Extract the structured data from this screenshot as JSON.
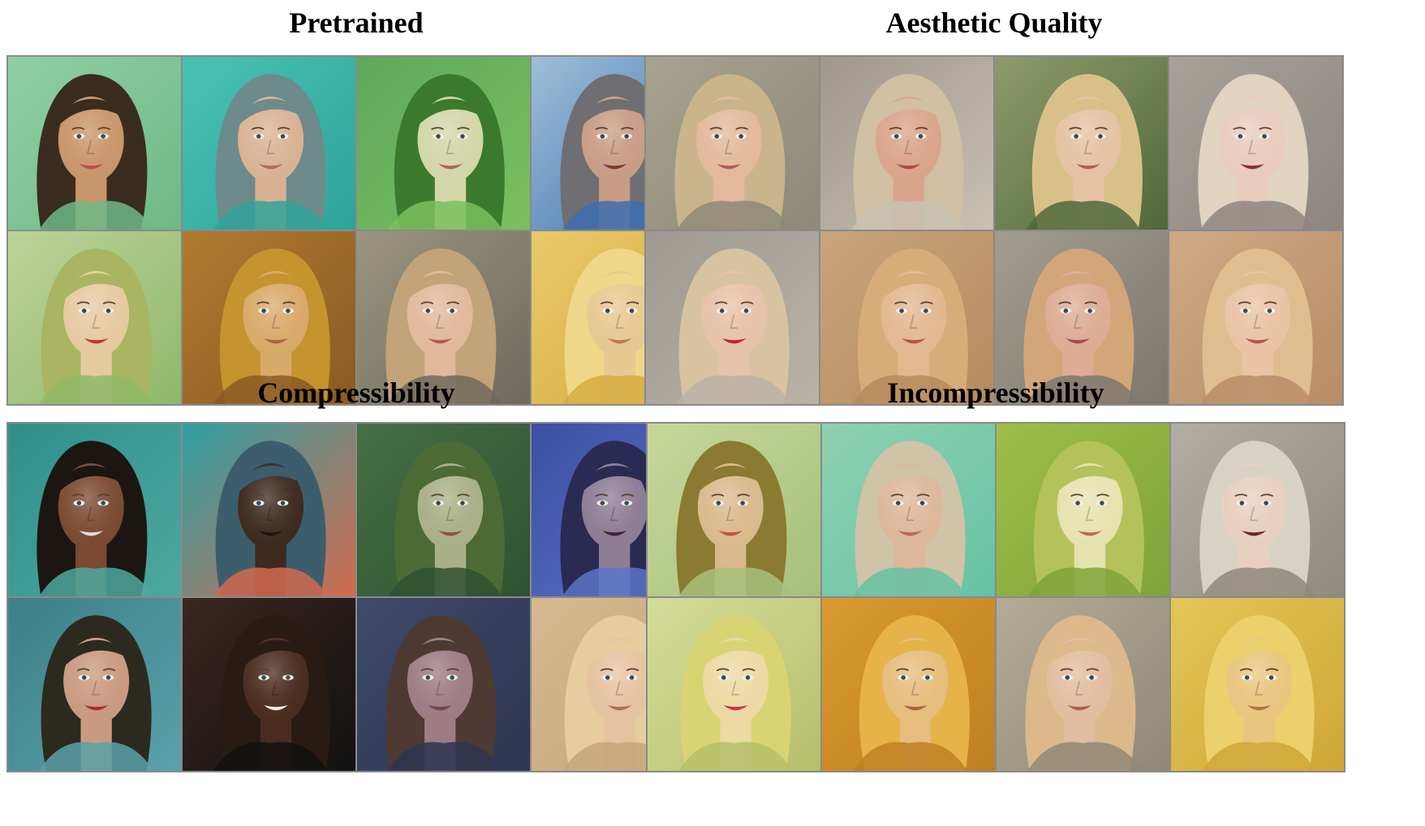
{
  "panels": [
    {
      "title": "Pretrained",
      "tiles": [
        {
          "bg": "#8fd0a3",
          "hair": "#3a2c1e",
          "skin": "#c9956b",
          "accent": "#6fb886",
          "mouth": "#c14a4a"
        },
        {
          "bg": "#49c2b3",
          "hair": "#6d8b8a",
          "skin": "#d9b294",
          "accent": "#2fa39a",
          "mouth": "#b06b5f"
        },
        {
          "bg": "#5ea85a",
          "hair": "#3b7a2c",
          "skin": "#d2d6a8",
          "accent": "#7bbf5f",
          "mouth": "#b0605a"
        },
        {
          "bg": "#9fbfd8",
          "hair": "#6f6e72",
          "skin": "#c99c86",
          "accent": "#3c6fb0",
          "mouth": "#7a3b35"
        },
        {
          "bg": "#bcd39a",
          "hair": "#a9b560",
          "skin": "#e5caa0",
          "accent": "#8fb86a",
          "mouth": "#c0343a"
        },
        {
          "bg": "#b07a30",
          "hair": "#c5942f",
          "skin": "#d9a96a",
          "accent": "#8a5a22",
          "mouth": "#b0604a"
        },
        {
          "bg": "#9a9480",
          "hair": "#c2a37a",
          "skin": "#e1b89a",
          "accent": "#6f6a5c",
          "mouth": "#b35a52"
        },
        {
          "bg": "#e9c96a",
          "hair": "#f0d688",
          "skin": "#e7c891",
          "accent": "#d6ab3f",
          "mouth": "#b77a55"
        }
      ]
    },
    {
      "title": "Aesthetic Quality",
      "tiles": [
        {
          "bg": "#a8a290",
          "hair": "#c9b48c",
          "skin": "#e2b99a",
          "accent": "#8d8878",
          "mouth": "#b4585a"
        },
        {
          "bg": "#9f978c",
          "hair": "#d0bfa2",
          "skin": "#d9a58a",
          "accent": "#c8c1b2",
          "mouth": "#b0484a"
        },
        {
          "bg": "#8f9a6c",
          "hair": "#d8c189",
          "skin": "#e5c2a2",
          "accent": "#50683a",
          "mouth": "#b35c5a"
        },
        {
          "bg": "#a8a19a",
          "hair": "#e2d2c0",
          "skin": "#e8cbbd",
          "accent": "#8d8680",
          "mouth": "#8c2f38"
        },
        {
          "bg": "#9e9a92",
          "hair": "#d7c3a0",
          "skin": "#e6c2a8",
          "accent": "#b9b3a6",
          "mouth": "#c8232e"
        },
        {
          "bg": "#c9a57c",
          "hair": "#d6ad78",
          "skin": "#e2b891",
          "accent": "#b58b5d",
          "mouth": "#a9574c"
        },
        {
          "bg": "#a39c90",
          "hair": "#d3a67a",
          "skin": "#dcad93",
          "accent": "#7c776e",
          "mouth": "#a14b4c"
        },
        {
          "bg": "#cfa985",
          "hair": "#e0bd8f",
          "skin": "#e9c3a3",
          "accent": "#b78c67",
          "mouth": "#b2534f"
        }
      ]
    },
    {
      "title": "Compressibility",
      "tiles": [
        {
          "bg": "#2f8f8b",
          "hair": "#1c1612",
          "skin": "#7a4a31",
          "accent": "#4ea8a0",
          "mouth": "#e8e0d8"
        },
        {
          "bg": "#2fa0a3",
          "hair": "#3c5e6c",
          "skin": "#3e2a1e",
          "accent": "#d26a4f",
          "mouth": "#1c1410"
        },
        {
          "bg": "#466f44",
          "hair": "#4c6a34",
          "skin": "#a9b087",
          "accent": "#2f5132",
          "mouth": "#8c4f43"
        },
        {
          "bg": "#3c4fa3",
          "hair": "#2a2a52",
          "skin": "#8d7d94",
          "accent": "#5a73c8",
          "mouth": "#3b2635"
        },
        {
          "bg": "#3d7f87",
          "hair": "#2c2a1f",
          "skin": "#c99a80",
          "accent": "#5aa1a9",
          "mouth": "#a82c34"
        },
        {
          "bg": "#3a2620",
          "hair": "#2a1a14",
          "skin": "#4a2c1f",
          "accent": "#111111",
          "mouth": "#f0ebe4"
        },
        {
          "bg": "#3f4a6a",
          "hair": "#4e3a33",
          "skin": "#9d7c84",
          "accent": "#2d3550",
          "mouth": "#6d4448"
        },
        {
          "bg": "#d7b991",
          "hair": "#e6cc9e",
          "skin": "#e6c3a0",
          "accent": "#c6a47a",
          "mouth": "#b46b5f"
        }
      ]
    },
    {
      "title": "Incompressibility",
      "tiles": [
        {
          "bg": "#c7d79a",
          "hair": "#8a7a32",
          "skin": "#d9b98d",
          "accent": "#a7c07a",
          "mouth": "#c24f4a"
        },
        {
          "bg": "#8fd1b2",
          "hair": "#cfc3a8",
          "skin": "#dcb79a",
          "accent": "#66c2a5",
          "mouth": "#b56b5c"
        },
        {
          "bg": "#9fbe4a",
          "hair": "#b4c25c",
          "skin": "#e6e2b0",
          "accent": "#7ea33a",
          "mouth": "#b86b5a"
        },
        {
          "bg": "#b2aea1",
          "hair": "#d8d2c4",
          "skin": "#e7cfbf",
          "accent": "#8f8a7d",
          "mouth": "#6a2b2f"
        },
        {
          "bg": "#d4dc9a",
          "hair": "#d8d474",
          "skin": "#ecd9a3",
          "accent": "#b6c06a",
          "mouth": "#c53740"
        },
        {
          "bg": "#d89a30",
          "hair": "#e6b24a",
          "skin": "#e6bd7c",
          "accent": "#c07f22",
          "mouth": "#b45d47"
        },
        {
          "bg": "#b5ab98",
          "hair": "#dcb88b",
          "skin": "#e2bd9f",
          "accent": "#8f8877",
          "mouth": "#b45a52"
        },
        {
          "bg": "#e3c657",
          "hair": "#ecd06b",
          "skin": "#e8c67f",
          "accent": "#cfa637",
          "mouth": "#b3704d"
        }
      ]
    }
  ]
}
